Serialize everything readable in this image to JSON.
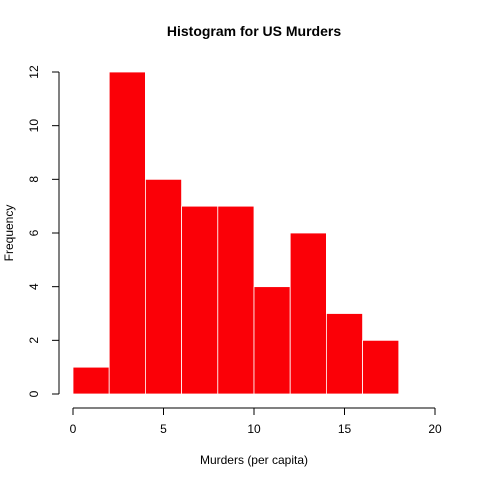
{
  "chart_data": {
    "type": "bar",
    "title": "Histogram for US Murders",
    "xlabel": "Murders (per capita)",
    "ylabel": "Frequency",
    "bins": [
      {
        "from": 0,
        "to": 2,
        "count": 1
      },
      {
        "from": 2,
        "to": 4,
        "count": 12
      },
      {
        "from": 4,
        "to": 6,
        "count": 8
      },
      {
        "from": 6,
        "to": 8,
        "count": 7
      },
      {
        "from": 8,
        "to": 10,
        "count": 7
      },
      {
        "from": 10,
        "to": 12,
        "count": 4
      },
      {
        "from": 12,
        "to": 14,
        "count": 6
      },
      {
        "from": 14,
        "to": 16,
        "count": 3
      },
      {
        "from": 16,
        "to": 18,
        "count": 2
      }
    ],
    "xlim": [
      0,
      20
    ],
    "ylim": [
      0,
      12
    ],
    "xticks": [
      0,
      5,
      10,
      15,
      20
    ],
    "yticks": [
      0,
      2,
      4,
      6,
      8,
      10,
      12
    ],
    "grid": false,
    "bar_color": "#fb0007",
    "bar_border_color": "#ffffff"
  }
}
